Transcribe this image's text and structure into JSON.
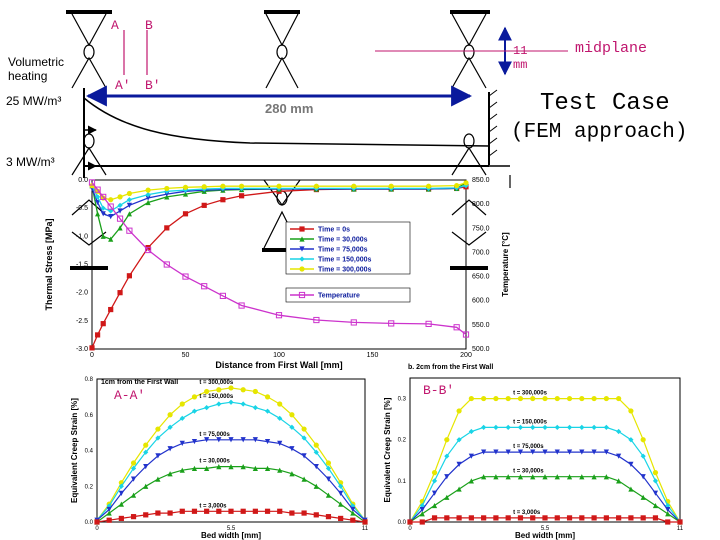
{
  "labels": {
    "A": "A",
    "B": "B",
    "A_prime": "A'",
    "B_prime": "B'",
    "volumetric": "Volumetric\nheating",
    "heat_25": "25 MW/m³",
    "heat_3": "3 MW/m³",
    "dim_280": "280 mm",
    "dim_11": "11\nmm",
    "midplane": "midplane",
    "test_case": "Test Case",
    "fem": "(FEM approach)",
    "aa_tag": "A-A'",
    "bb_tag": "B-B'"
  },
  "chart_data": [
    {
      "type": "line",
      "title": "",
      "xlabel": "Distance from First Wall [mm]",
      "ylabel": "Thermal Stress [MPa]",
      "y2label": "Temperature [°C]",
      "xlim": [
        0,
        200
      ],
      "ylim": [
        -3.0,
        0.0
      ],
      "y2lim": [
        500,
        850
      ],
      "xticks": [
        "0",
        "50",
        "100",
        "150",
        "200"
      ],
      "yticks": [
        "0.0",
        "-0.5",
        "-1.0",
        "-1.5",
        "-2.0",
        "-2.5",
        "-3.0"
      ],
      "y2ticks": [
        "850.0",
        "800.0",
        "750.0",
        "700.0",
        "650.0",
        "600.0",
        "550.0",
        "500.0"
      ],
      "x": [
        0,
        3,
        6,
        10,
        15,
        20,
        30,
        40,
        50,
        60,
        70,
        80,
        100,
        120,
        140,
        160,
        180,
        195,
        200
      ],
      "series": [
        {
          "name": "Time = 0s",
          "color": "#d01818",
          "marker": "square",
          "axis": "left",
          "values": [
            -2.98,
            -2.75,
            -2.55,
            -2.3,
            -2.0,
            -1.7,
            -1.2,
            -0.85,
            -0.6,
            -0.45,
            -0.35,
            -0.28,
            -0.2,
            -0.17,
            -0.16,
            -0.16,
            -0.16,
            -0.15,
            -0.12
          ]
        },
        {
          "name": "Time = 30,000s",
          "color": "#1aa01a",
          "marker": "triangle",
          "axis": "left",
          "values": [
            -0.1,
            -0.6,
            -1.0,
            -1.05,
            -0.85,
            -0.6,
            -0.4,
            -0.3,
            -0.25,
            -0.2,
            -0.18,
            -0.17,
            -0.16,
            -0.16,
            -0.16,
            -0.16,
            -0.16,
            -0.15,
            -0.05
          ]
        },
        {
          "name": "Time = 75,000s",
          "color": "#2233cc",
          "marker": "tri-down",
          "axis": "left",
          "values": [
            -0.15,
            -0.4,
            -0.6,
            -0.65,
            -0.55,
            -0.45,
            -0.32,
            -0.25,
            -0.2,
            -0.18,
            -0.17,
            -0.16,
            -0.16,
            -0.16,
            -0.16,
            -0.16,
            -0.16,
            -0.15,
            -0.1
          ]
        },
        {
          "name": "Time = 150,000s",
          "color": "#19d4e6",
          "marker": "diamond",
          "axis": "left",
          "values": [
            -0.1,
            -0.3,
            -0.5,
            -0.55,
            -0.45,
            -0.35,
            -0.26,
            -0.2,
            -0.18,
            -0.16,
            -0.15,
            -0.15,
            -0.15,
            -0.15,
            -0.15,
            -0.15,
            -0.15,
            -0.14,
            -0.1
          ]
        },
        {
          "name": "Time = 300,000s",
          "color": "#e6e600",
          "marker": "circle",
          "axis": "left",
          "values": [
            -0.1,
            -0.2,
            -0.32,
            -0.35,
            -0.3,
            -0.24,
            -0.18,
            -0.15,
            -0.13,
            -0.12,
            -0.11,
            -0.11,
            -0.11,
            -0.11,
            -0.11,
            -0.11,
            -0.11,
            -0.1,
            -0.05
          ]
        },
        {
          "name": "Temperature",
          "color": "#cc33cc",
          "marker": "square-open",
          "axis": "right",
          "values": [
            845,
            830,
            815,
            795,
            770,
            745,
            705,
            675,
            650,
            630,
            610,
            590,
            570,
            560,
            555,
            553,
            552,
            545,
            530
          ]
        }
      ],
      "legend_position": "center-right"
    },
    {
      "type": "line",
      "title": "1cm from the First Wall",
      "xlabel": "Bed width [mm]",
      "ylabel": "Equivalent Creep Strain [%]",
      "xlim": [
        0,
        11
      ],
      "ylim": [
        0.0,
        0.8
      ],
      "xticks": [
        "0",
        "5.5",
        "11"
      ],
      "yticks": [
        "0.0",
        "0.2",
        "0.4",
        "0.6",
        "0.8"
      ],
      "x": [
        0,
        0.5,
        1,
        1.5,
        2,
        2.5,
        3,
        3.5,
        4,
        4.5,
        5,
        5.5,
        6,
        6.5,
        7,
        7.5,
        8,
        8.5,
        9,
        9.5,
        10,
        10.5,
        11
      ],
      "series": [
        {
          "name": "t = 300,000s",
          "color": "#e6e600",
          "values": [
            0.01,
            0.1,
            0.22,
            0.33,
            0.43,
            0.52,
            0.6,
            0.66,
            0.7,
            0.73,
            0.74,
            0.75,
            0.74,
            0.73,
            0.7,
            0.66,
            0.6,
            0.52,
            0.43,
            0.33,
            0.22,
            0.1,
            0.01
          ]
        },
        {
          "name": "t = 150,000s",
          "color": "#19d4e6",
          "values": [
            0.01,
            0.09,
            0.2,
            0.3,
            0.39,
            0.47,
            0.53,
            0.58,
            0.62,
            0.64,
            0.66,
            0.67,
            0.66,
            0.64,
            0.62,
            0.58,
            0.53,
            0.47,
            0.39,
            0.3,
            0.2,
            0.09,
            0.01
          ]
        },
        {
          "name": "t = 75,000s",
          "color": "#2233cc",
          "values": [
            0.01,
            0.07,
            0.16,
            0.24,
            0.31,
            0.37,
            0.41,
            0.44,
            0.45,
            0.46,
            0.46,
            0.46,
            0.46,
            0.46,
            0.45,
            0.44,
            0.41,
            0.37,
            0.31,
            0.24,
            0.16,
            0.07,
            0.01
          ]
        },
        {
          "name": "t = 30,000s",
          "color": "#1aa01a",
          "values": [
            0.0,
            0.05,
            0.1,
            0.15,
            0.2,
            0.24,
            0.27,
            0.29,
            0.3,
            0.3,
            0.31,
            0.31,
            0.31,
            0.3,
            0.3,
            0.29,
            0.27,
            0.24,
            0.2,
            0.15,
            0.1,
            0.05,
            0.0
          ]
        },
        {
          "name": "t = 3,000s",
          "color": "#d01818",
          "values": [
            0.0,
            0.01,
            0.02,
            0.03,
            0.04,
            0.05,
            0.05,
            0.06,
            0.06,
            0.06,
            0.06,
            0.06,
            0.06,
            0.06,
            0.06,
            0.06,
            0.05,
            0.05,
            0.04,
            0.03,
            0.02,
            0.01,
            0.0
          ]
        }
      ]
    },
    {
      "type": "line",
      "title": "b. 2cm from the First Wall",
      "xlabel": "Bed width [mm]",
      "ylabel": "Equivalent Creep Strain [%]",
      "xlim": [
        0,
        11
      ],
      "ylim": [
        0.0,
        0.35
      ],
      "xticks": [
        "0",
        "5.5",
        "11"
      ],
      "yticks": [
        "0.0",
        "0.1",
        "0.2",
        "0.3"
      ],
      "x": [
        0,
        0.5,
        1,
        1.5,
        2,
        2.5,
        3,
        3.5,
        4,
        4.5,
        5,
        5.5,
        6,
        6.5,
        7,
        7.5,
        8,
        8.5,
        9,
        9.5,
        10,
        10.5,
        11
      ],
      "series": [
        {
          "name": "t = 300,000s",
          "color": "#e6e600",
          "values": [
            0.0,
            0.05,
            0.12,
            0.2,
            0.27,
            0.3,
            0.3,
            0.3,
            0.3,
            0.3,
            0.3,
            0.3,
            0.3,
            0.3,
            0.3,
            0.3,
            0.3,
            0.3,
            0.27,
            0.2,
            0.12,
            0.05,
            0.0
          ]
        },
        {
          "name": "t = 150,000s",
          "color": "#19d4e6",
          "values": [
            0.0,
            0.04,
            0.1,
            0.16,
            0.2,
            0.22,
            0.23,
            0.23,
            0.23,
            0.23,
            0.23,
            0.23,
            0.23,
            0.23,
            0.23,
            0.23,
            0.23,
            0.22,
            0.2,
            0.16,
            0.1,
            0.04,
            0.0
          ]
        },
        {
          "name": "t = 75,000s",
          "color": "#2233cc",
          "values": [
            0.0,
            0.03,
            0.07,
            0.11,
            0.14,
            0.16,
            0.17,
            0.17,
            0.17,
            0.17,
            0.17,
            0.17,
            0.17,
            0.17,
            0.17,
            0.17,
            0.17,
            0.16,
            0.14,
            0.11,
            0.07,
            0.03,
            0.0
          ]
        },
        {
          "name": "t = 30,000s",
          "color": "#1aa01a",
          "values": [
            0.0,
            0.02,
            0.04,
            0.06,
            0.08,
            0.1,
            0.11,
            0.11,
            0.11,
            0.11,
            0.11,
            0.11,
            0.11,
            0.11,
            0.11,
            0.11,
            0.11,
            0.1,
            0.08,
            0.06,
            0.04,
            0.02,
            0.0
          ]
        },
        {
          "name": "t = 3,000s",
          "color": "#d01818",
          "values": [
            0.0,
            0.0,
            0.01,
            0.01,
            0.01,
            0.01,
            0.01,
            0.01,
            0.01,
            0.01,
            0.01,
            0.01,
            0.01,
            0.01,
            0.01,
            0.01,
            0.01,
            0.01,
            0.01,
            0.01,
            0.01,
            0.0,
            0.0
          ]
        }
      ]
    }
  ]
}
